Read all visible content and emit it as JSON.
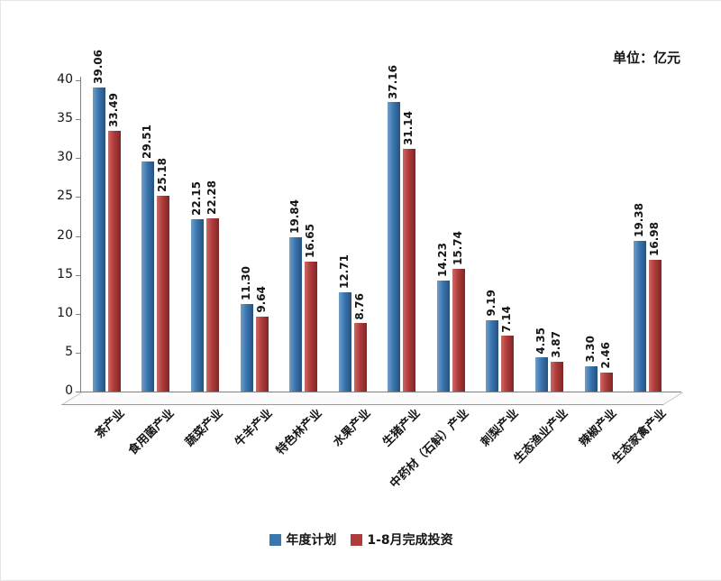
{
  "unit_label": "单位：亿元",
  "chart_data": {
    "type": "bar",
    "title": "",
    "unit": "亿元",
    "categories": [
      "茶产业",
      "食用菌产业",
      "蔬菜产业",
      "牛羊产业",
      "特色林产业",
      "水果产业",
      "生猪产业",
      "中药材（石斛）产业",
      "刺梨产业",
      "生态渔业产业",
      "辣椒产业",
      "生态家禽产业"
    ],
    "series": [
      {
        "name": "年度计划",
        "color": "#3a76b0",
        "color_light": "#6f9fcb",
        "color_dark": "#26517f",
        "values": [
          39.06,
          29.51,
          22.15,
          11.3,
          19.84,
          12.71,
          37.16,
          14.23,
          9.19,
          4.35,
          3.3,
          19.38
        ]
      },
      {
        "name": "1-8月完成投资",
        "color": "#b03b3b",
        "color_light": "#cb6a66",
        "color_dark": "#7e2626",
        "values": [
          33.49,
          25.18,
          22.28,
          9.64,
          16.65,
          8.76,
          31.14,
          15.74,
          7.14,
          3.87,
          2.46,
          16.98
        ]
      }
    ],
    "ylim": [
      0,
      40
    ],
    "yticks": [
      0,
      5,
      10,
      15,
      20,
      25,
      30,
      35,
      40
    ],
    "grid": false,
    "legend_position": "bottom",
    "value_labels": "rotated-90",
    "category_labels": "rotated-45"
  }
}
